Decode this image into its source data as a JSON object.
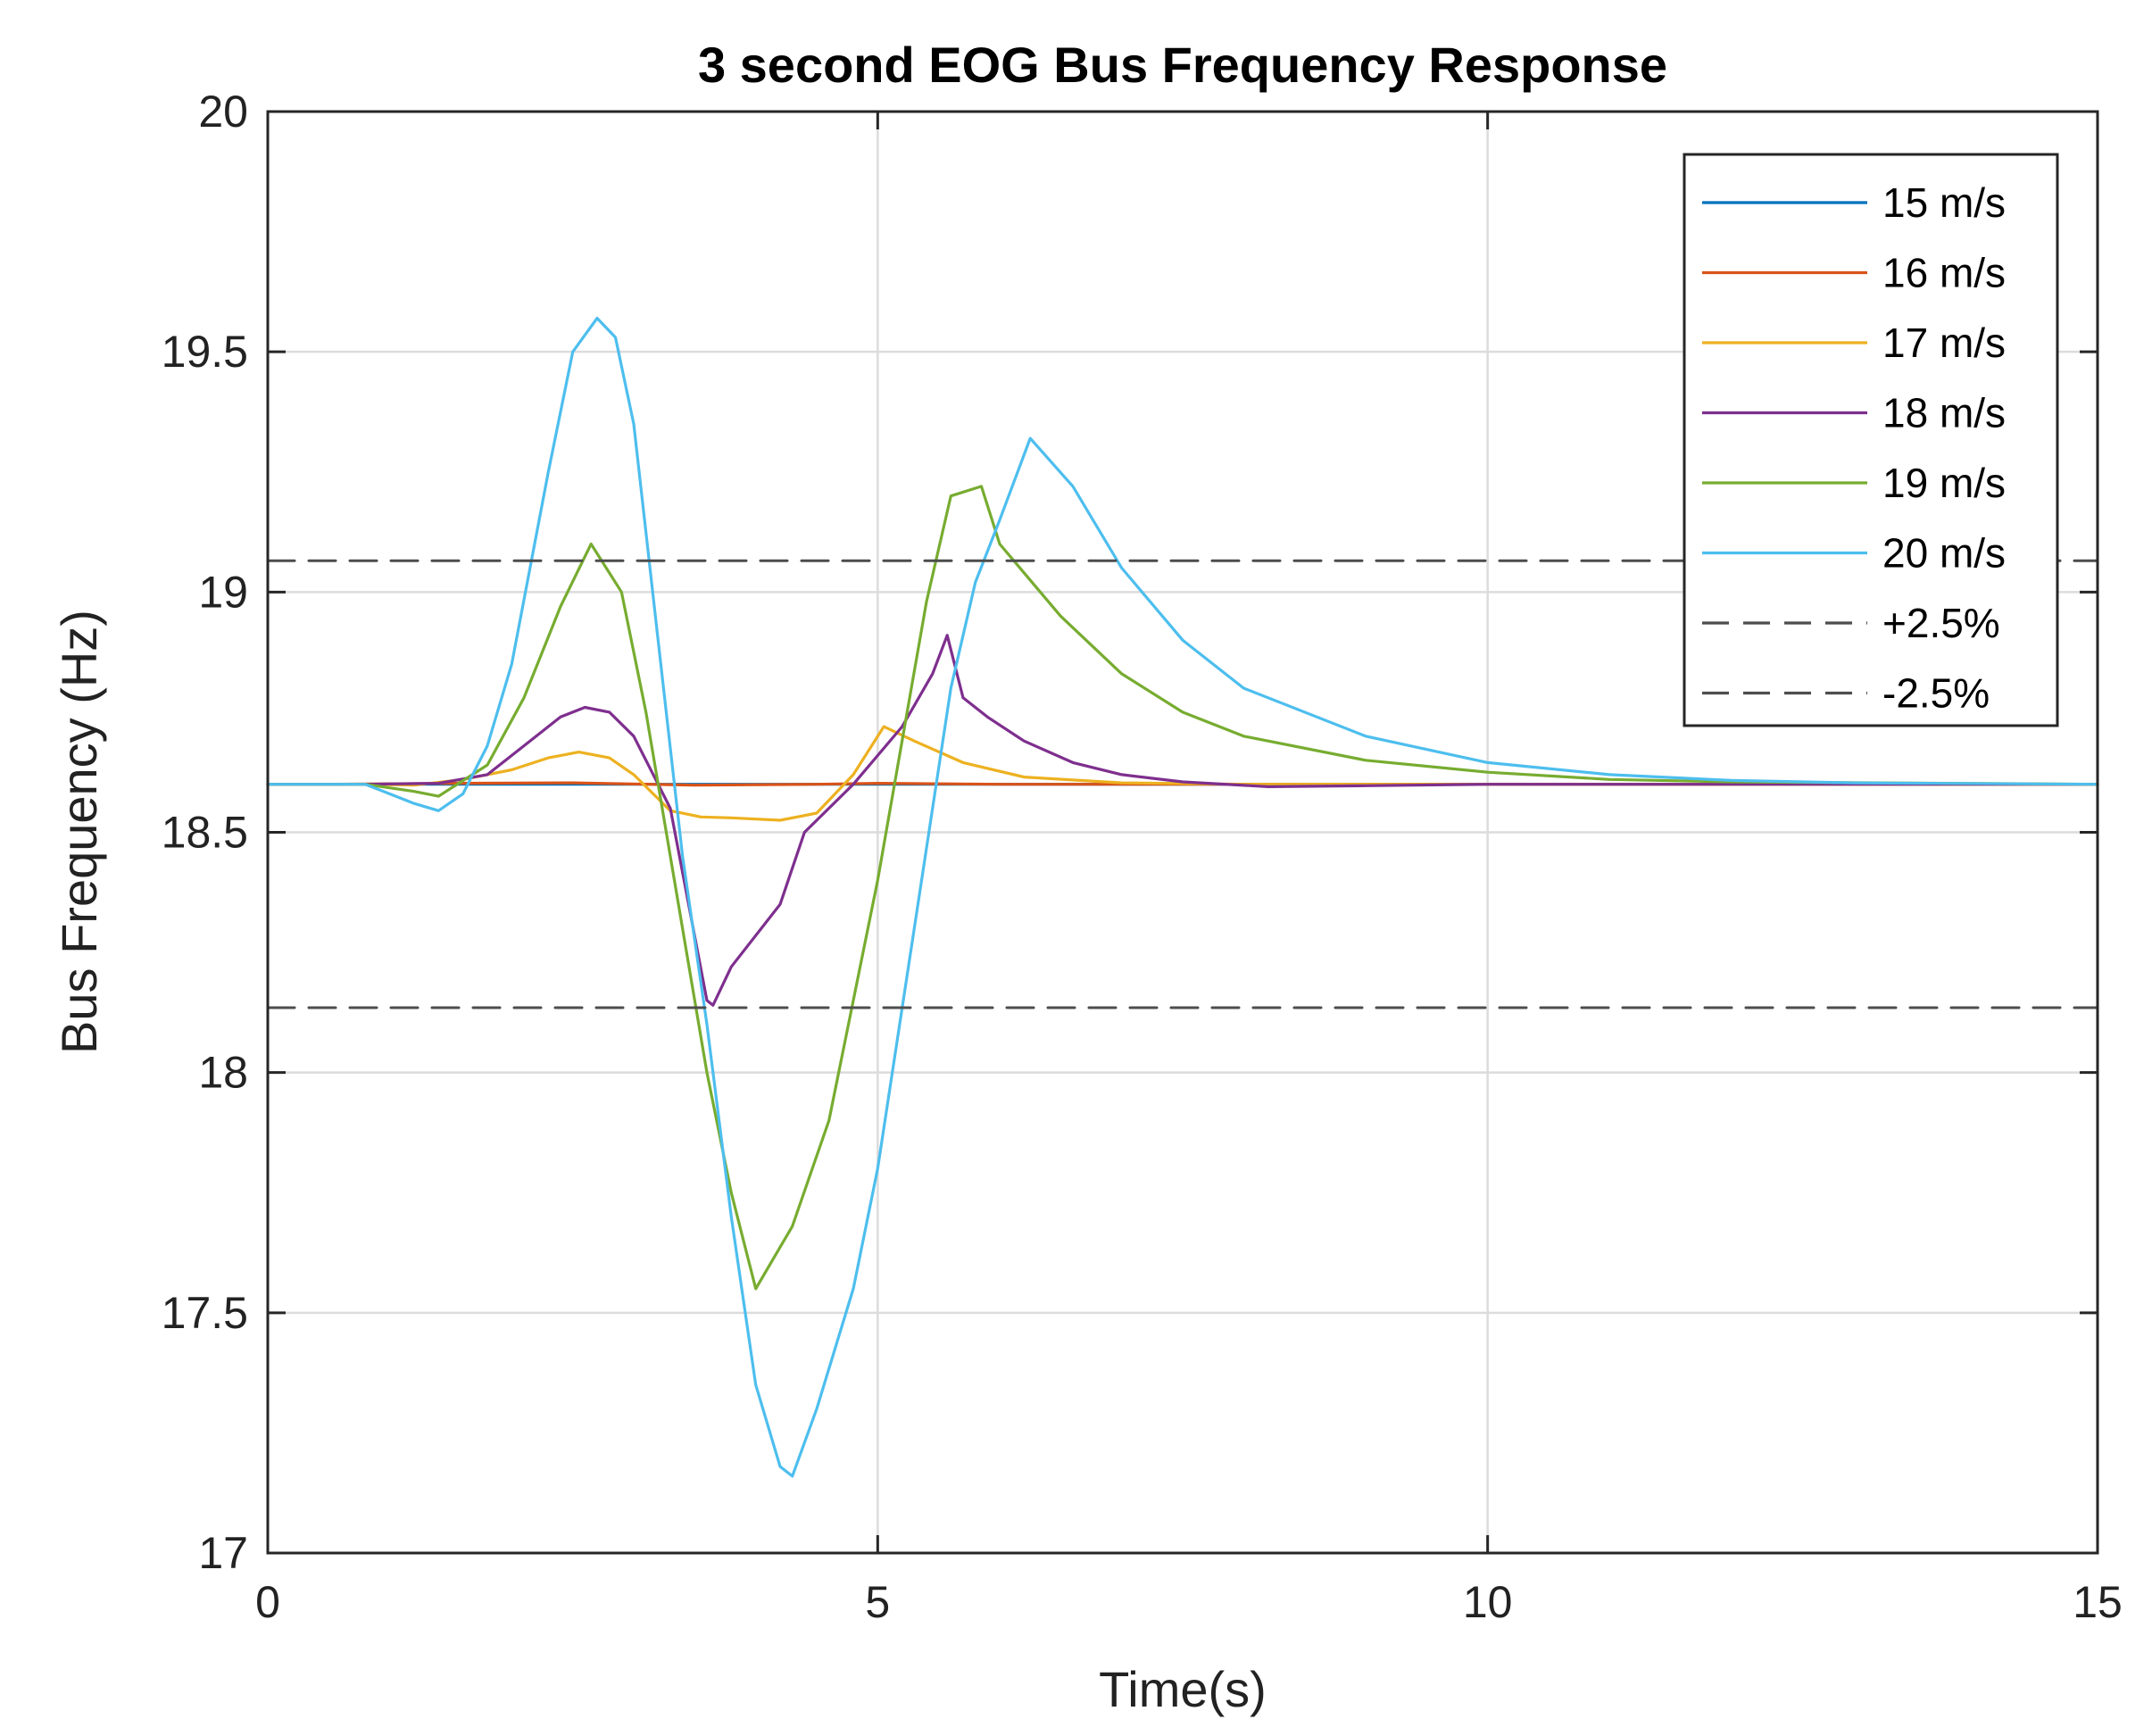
{
  "chart_data": {
    "type": "line",
    "title": "3 second EOG Bus Frequency Response",
    "xlabel": "Time(s)",
    "ylabel": "Bus Frequency (Hz)",
    "xlim": [
      0,
      15
    ],
    "ylim": [
      17,
      20
    ],
    "xticks": [
      0,
      5,
      10,
      15
    ],
    "yticks": [
      17,
      17.5,
      18,
      18.5,
      19,
      19.5,
      20
    ],
    "xtick_labels": [
      "0",
      "5",
      "10",
      "15"
    ],
    "ytick_labels": [
      "17",
      "17.5",
      "18",
      "18.5",
      "19",
      "19.5",
      "20"
    ],
    "grid": true,
    "legend_position": "top-right",
    "series": [
      {
        "name": "15 m/s",
        "color": "#0072BD",
        "style": "solid",
        "x": [
          0,
          1.0,
          3.0,
          5.0,
          8.0,
          15
        ],
        "y": [
          18.6,
          18.6,
          18.6,
          18.6,
          18.6,
          18.6
        ]
      },
      {
        "name": "16 m/s",
        "color": "#D95319",
        "style": "solid",
        "x": [
          0,
          0.5,
          1.5,
          2.5,
          3.5,
          4.5,
          5.0,
          6.0,
          8.0,
          15
        ],
        "y": [
          18.6,
          18.6,
          18.602,
          18.603,
          18.598,
          18.6,
          18.602,
          18.6,
          18.6,
          18.6
        ]
      },
      {
        "name": "17 m/s",
        "color": "#EDB120",
        "style": "solid",
        "x": [
          0,
          0.8,
          1.2,
          1.6,
          2.0,
          2.3,
          2.55,
          2.8,
          3.0,
          3.3,
          3.55,
          3.8,
          4.2,
          4.5,
          4.8,
          5.05,
          5.3,
          5.7,
          6.2,
          7.0,
          8.0,
          15
        ],
        "y": [
          18.6,
          18.6,
          18.598,
          18.61,
          18.63,
          18.655,
          18.667,
          18.655,
          18.62,
          18.545,
          18.532,
          18.53,
          18.525,
          18.54,
          18.62,
          18.72,
          18.69,
          18.645,
          18.615,
          18.603,
          18.6,
          18.6
        ]
      },
      {
        "name": "18 m/s",
        "color": "#7E2F8E",
        "style": "solid",
        "x": [
          0,
          0.8,
          1.4,
          1.8,
          2.1,
          2.4,
          2.6,
          2.8,
          3.0,
          3.3,
          3.6,
          3.65,
          3.8,
          4.2,
          4.4,
          4.8,
          5.2,
          5.45,
          5.57,
          5.7,
          5.9,
          6.2,
          6.6,
          7.0,
          7.5,
          8.2,
          9.0,
          10.0,
          15
        ],
        "y": [
          18.6,
          18.6,
          18.602,
          18.62,
          18.68,
          18.74,
          18.76,
          18.75,
          18.7,
          18.55,
          18.15,
          18.14,
          18.22,
          18.35,
          18.5,
          18.6,
          18.72,
          18.83,
          18.91,
          18.78,
          18.74,
          18.69,
          18.645,
          18.62,
          18.605,
          18.595,
          18.597,
          18.6,
          18.6
        ]
      },
      {
        "name": "19 m/s",
        "color": "#77AC30",
        "style": "solid",
        "x": [
          0,
          0.8,
          1.2,
          1.4,
          1.8,
          2.1,
          2.4,
          2.65,
          2.9,
          3.1,
          3.3,
          3.6,
          3.8,
          4.0,
          4.3,
          4.6,
          5.0,
          5.4,
          5.6,
          5.85,
          6.0,
          6.5,
          7.0,
          7.5,
          8.0,
          9.0,
          10.0,
          11.0,
          12.0,
          15
        ],
        "y": [
          18.6,
          18.6,
          18.585,
          18.575,
          18.64,
          18.78,
          18.97,
          19.1,
          19.0,
          18.75,
          18.45,
          18.0,
          17.75,
          17.55,
          17.68,
          17.9,
          18.4,
          18.98,
          19.2,
          19.22,
          19.1,
          18.95,
          18.83,
          18.75,
          18.7,
          18.65,
          18.625,
          18.61,
          18.605,
          18.6
        ]
      },
      {
        "name": "20 m/s",
        "color": "#4DBEEE",
        "style": "solid",
        "x": [
          0,
          0.8,
          1.2,
          1.4,
          1.6,
          1.8,
          2.0,
          2.3,
          2.5,
          2.7,
          2.85,
          3.0,
          3.2,
          3.4,
          3.6,
          3.8,
          4.0,
          4.2,
          4.3,
          4.5,
          4.8,
          5.0,
          5.3,
          5.6,
          5.8,
          6.0,
          6.25,
          6.6,
          7.0,
          7.5,
          8.0,
          9.0,
          10.0,
          11.0,
          12.0,
          13.0,
          15
        ],
        "y": [
          18.6,
          18.6,
          18.56,
          18.545,
          18.58,
          18.68,
          18.85,
          19.25,
          19.5,
          19.57,
          19.53,
          19.35,
          18.9,
          18.45,
          18.1,
          17.7,
          17.35,
          17.18,
          17.16,
          17.3,
          17.55,
          17.8,
          18.3,
          18.8,
          19.02,
          19.15,
          19.32,
          19.22,
          19.05,
          18.9,
          18.8,
          18.7,
          18.645,
          18.62,
          18.608,
          18.603,
          18.6
        ]
      },
      {
        "name": "+2.5%",
        "color": "#4D4D4D",
        "style": "dashed",
        "x": [
          0,
          15
        ],
        "y": [
          19.065,
          19.065
        ]
      },
      {
        "name": "-2.5%",
        "color": "#4D4D4D",
        "style": "dashed",
        "x": [
          0,
          15
        ],
        "y": [
          18.135,
          18.135
        ]
      }
    ]
  }
}
